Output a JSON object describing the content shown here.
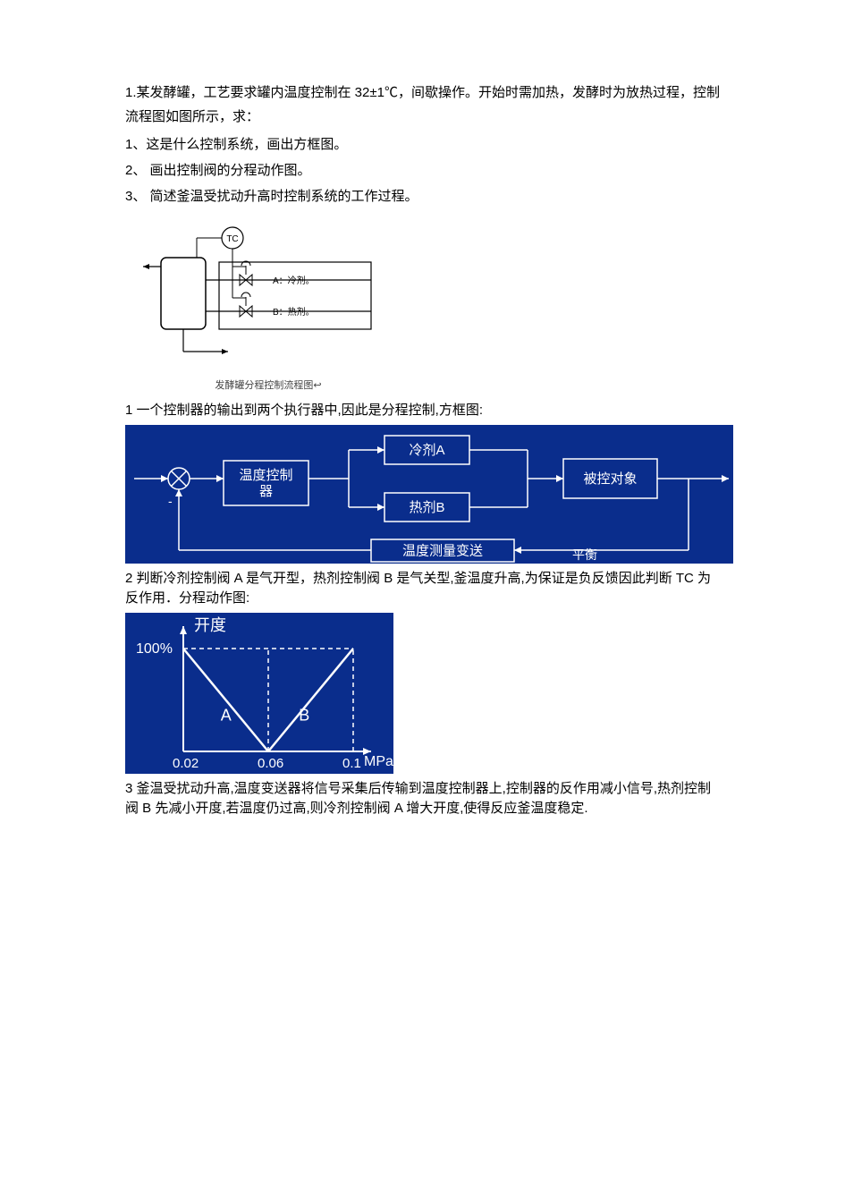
{
  "question": {
    "intro": "1.某发酵罐，工艺要求罐内温度控制在 32±1℃，间歇操作。开始时需加热，发酵时为放热过程，控制流程图如图所示，求：",
    "sub1": "1、这是什么控制系统，画出方框图。",
    "sub2": "2、 画出控制阀的分程动作图。",
    "sub3": "3、 简述釜温受扰动升高时控制系统的工作过程。"
  },
  "process_diagram": {
    "tc_label": "TC",
    "a_label": "A：冷剂。",
    "b_label": "B：热剂。",
    "caption": "发酵罐分程控制流程图↩"
  },
  "answer1_text": "1 一个控制器的输出到两个执行器中,因此是分程控制,方框图:",
  "block_diagram": {
    "type": "flowchart",
    "bg_color": "#0a2d8c",
    "border_color": "#ffffff",
    "text_color": "#ffffff",
    "controller": "温度控制器",
    "valve_a": "冷剂A",
    "valve_b": "热剂B",
    "plant": "被控对象",
    "feedback": "温度测量变送",
    "minus": "-",
    "extra": "平衡"
  },
  "answer2_text": "2 判断冷剂控制阀 A 是气开型，热剂控制阀 B 是气关型,釜温度升高,为保证是负反馈因此判断 TC 为反作用．分程动作图:",
  "action_chart": {
    "type": "line",
    "bg_color": "#0a2d8c",
    "text_color": "#ffffff",
    "line_color": "#ffffff",
    "dash_color": "#ffffff",
    "y_label": "开度",
    "y_max_label": "100%",
    "x_label": "MPa",
    "x_ticks": [
      "0.02",
      "0.06",
      "0.1"
    ],
    "series_a_label": "A",
    "series_b_label": "B",
    "xlim": [
      0.02,
      0.1
    ],
    "ylim": [
      0,
      100
    ]
  },
  "answer3_text": "3 釜温受扰动升高,温度变送器将信号采集后传输到温度控制器上,控制器的反作用减小信号,热剂控制阀 B 先减小开度,若温度仍过高,则冷剂控制阀 A 增大开度,使得反应釜温度稳定."
}
